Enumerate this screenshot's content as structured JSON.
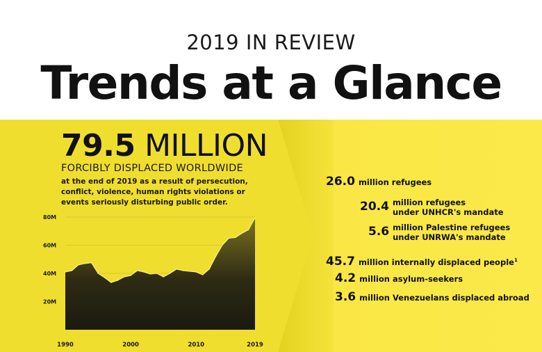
{
  "header": {
    "kicker": "2019 IN REVIEW",
    "title": "Trends at a Glance"
  },
  "headline": {
    "number": "79.5",
    "unit": "MILLION",
    "subtitle": "FORCIBLY DISPLACED WORLDWIDE",
    "description": "at the end of 2019 as a result of persecution, conflict, violence, human rights violations or events seriously disturbing public order."
  },
  "stats": [
    {
      "value": "26.0",
      "label": "million refugees",
      "label2": ""
    },
    {
      "value": "20.4",
      "label": "million refugees",
      "label2": "under UNHCR's mandate"
    },
    {
      "value": "5.6",
      "label": "million Palestine refugees",
      "label2": "under UNRWA's mandate"
    },
    {
      "value": "45.7",
      "label": "million internally displaced people",
      "footnote": "1"
    },
    {
      "value": "4.2",
      "label": "million asylum-seekers"
    },
    {
      "value": "3.6",
      "label": "million Venezuelans displaced abroad"
    }
  ],
  "colors": {
    "band": "#f3e23a",
    "area_top": "#7a7320",
    "area_bottom": "#1a1a10",
    "text": "#111111"
  },
  "chart_data": {
    "type": "area",
    "x": [
      1990,
      1991,
      1992,
      1993,
      1994,
      1995,
      1996,
      1997,
      1998,
      1999,
      2000,
      2001,
      2002,
      2003,
      2004,
      2005,
      2006,
      2007,
      2008,
      2009,
      2010,
      2011,
      2012,
      2013,
      2014,
      2015,
      2016,
      2017,
      2018,
      2019
    ],
    "values": [
      41,
      42,
      46,
      47,
      47.5,
      40,
      37,
      33.5,
      35,
      37.5,
      38.5,
      42,
      41,
      39.5,
      40,
      37.5,
      40,
      43,
      42,
      41.5,
      41,
      39,
      43,
      52,
      60,
      65,
      65.5,
      68.5,
      71,
      79.5
    ],
    "ylim": [
      0,
      80
    ],
    "yticks": [
      20,
      40,
      60,
      80
    ],
    "ytick_labels": [
      "20M",
      "40M",
      "60M",
      "80M"
    ],
    "xticks": [
      1990,
      2000,
      2010,
      2019
    ],
    "xtick_labels": [
      "1990",
      "2000",
      "2010",
      "2019"
    ],
    "grid": true
  }
}
